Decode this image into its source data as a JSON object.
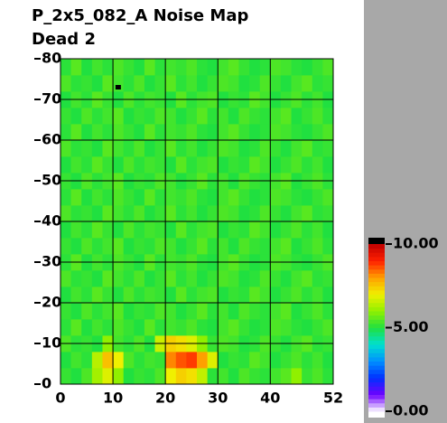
{
  "chart_data": {
    "type": "heatmap",
    "title": "P_2x5_082_A Noise Map",
    "subtitle": "Dead 2",
    "xlim": [
      0,
      52
    ],
    "xticks": [
      0,
      10,
      20,
      30,
      40,
      52
    ],
    "ylim": [
      0,
      80
    ],
    "yticks": [
      0,
      10,
      20,
      30,
      40,
      50,
      60,
      70,
      80
    ],
    "grid": true,
    "zlim": [
      0,
      10
    ],
    "zticks": [
      {
        "value": 0,
        "label": "0.00"
      },
      {
        "value": 5,
        "label": "5.00"
      },
      {
        "value": 10,
        "label": "10.00"
      }
    ],
    "colorscale": [
      "#ffffff",
      "#7000ff",
      "#0030ff",
      "#0090ff",
      "#00e0d0",
      "#20e040",
      "#90f000",
      "#f0f000",
      "#ffa000",
      "#ff2000",
      "#c00000"
    ],
    "dead_color": "#000000",
    "dead_pixels": [
      {
        "x": 11,
        "y": 73
      }
    ],
    "z": [
      [
        5.2,
        5.0,
        5.4,
        6.2,
        6.8,
        6.0,
        5.0,
        5.2,
        5.1,
        5.4,
        7.0,
        7.4,
        7.2,
        6.5,
        5.1,
        5.3,
        5.0,
        5.4,
        5.2,
        5.1,
        5.3,
        5.5,
        6.0,
        5.2,
        5.4,
        5.1
      ],
      [
        5.0,
        5.3,
        5.1,
        6.4,
        7.6,
        7.0,
        5.4,
        5.1,
        5.3,
        5.2,
        8.2,
        8.6,
        8.8,
        8.0,
        6.8,
        5.0,
        5.2,
        5.1,
        5.5,
        5.3,
        5.0,
        5.2,
        5.4,
        5.1,
        5.3,
        5.0
      ],
      [
        5.4,
        5.1,
        5.2,
        5.0,
        6.0,
        5.3,
        5.1,
        5.4,
        5.0,
        6.6,
        7.4,
        7.2,
        6.8,
        6.0,
        5.2,
        5.4,
        5.3,
        5.0,
        5.1,
        5.4,
        5.2,
        5.0,
        5.3,
        5.5,
        5.1,
        5.2
      ],
      [
        5.1,
        5.5,
        5.0,
        5.3,
        5.1,
        5.4,
        5.2,
        5.0,
        5.5,
        5.1,
        5.3,
        5.2,
        5.4,
        5.1,
        5.0,
        5.3,
        5.5,
        5.2,
        5.0,
        5.1,
        5.4,
        5.3,
        5.1,
        5.0,
        5.2,
        5.4
      ],
      [
        5.2,
        5.0,
        5.4,
        5.1,
        5.3,
        5.5,
        5.0,
        5.2,
        5.1,
        5.4,
        5.3,
        5.0,
        5.2,
        5.5,
        5.1,
        5.3,
        5.0,
        5.4,
        5.2,
        5.1,
        5.3,
        5.5,
        5.0,
        5.2,
        5.4,
        5.1
      ],
      [
        5.0,
        5.3,
        5.1,
        5.5,
        5.2,
        5.0,
        5.4,
        5.1,
        5.3,
        5.2,
        5.0,
        5.5,
        5.1,
        5.3,
        5.4,
        5.0,
        5.2,
        5.1,
        5.5,
        5.3,
        5.0,
        5.2,
        5.4,
        5.1,
        5.3,
        5.0
      ],
      [
        5.4,
        5.1,
        5.2,
        5.0,
        5.5,
        5.3,
        5.1,
        5.4,
        5.0,
        5.2,
        5.5,
        5.1,
        5.3,
        5.0,
        5.2,
        5.4,
        5.3,
        5.0,
        5.1,
        5.4,
        5.2,
        5.0,
        5.3,
        5.5,
        5.1,
        5.2
      ],
      [
        5.1,
        5.5,
        5.0,
        5.3,
        5.1,
        5.4,
        5.2,
        5.0,
        5.5,
        5.1,
        5.3,
        5.2,
        5.4,
        5.1,
        5.0,
        5.3,
        5.5,
        5.2,
        5.0,
        5.1,
        5.4,
        5.3,
        5.1,
        5.0,
        5.2,
        5.4
      ],
      [
        5.2,
        5.0,
        5.4,
        5.1,
        5.3,
        5.5,
        5.0,
        5.2,
        5.1,
        5.4,
        5.3,
        5.0,
        5.2,
        5.5,
        5.1,
        5.3,
        5.0,
        5.4,
        5.2,
        5.1,
        5.3,
        5.5,
        5.0,
        5.2,
        5.4,
        5.1
      ],
      [
        5.0,
        5.3,
        5.1,
        5.5,
        5.2,
        5.0,
        5.4,
        5.1,
        5.3,
        5.2,
        5.0,
        5.5,
        5.1,
        5.3,
        5.4,
        5.0,
        5.2,
        5.1,
        5.5,
        5.3,
        5.0,
        5.2,
        5.4,
        5.1,
        5.3,
        5.0
      ],
      [
        5.4,
        5.1,
        5.2,
        5.0,
        5.5,
        5.3,
        5.1,
        5.4,
        5.0,
        5.2,
        5.5,
        5.1,
        5.3,
        5.0,
        5.2,
        5.4,
        5.3,
        5.0,
        5.1,
        5.4,
        5.2,
        5.0,
        5.3,
        5.5,
        5.1,
        5.2
      ],
      [
        5.1,
        5.5,
        5.0,
        5.3,
        5.1,
        5.4,
        5.2,
        5.0,
        5.5,
        5.1,
        5.3,
        5.2,
        5.4,
        5.1,
        5.0,
        5.3,
        5.5,
        5.2,
        5.0,
        5.1,
        5.4,
        5.3,
        5.1,
        5.0,
        5.2,
        5.4
      ],
      [
        5.2,
        5.0,
        5.4,
        5.1,
        5.3,
        5.5,
        5.0,
        5.2,
        5.1,
        5.4,
        5.3,
        5.0,
        5.2,
        5.5,
        5.1,
        5.3,
        5.0,
        5.4,
        5.2,
        5.1,
        5.3,
        5.5,
        5.0,
        5.2,
        5.4,
        5.1
      ],
      [
        5.0,
        5.3,
        5.1,
        5.5,
        5.2,
        5.0,
        5.4,
        5.1,
        5.3,
        5.2,
        5.0,
        5.5,
        5.1,
        5.3,
        5.4,
        5.0,
        5.2,
        5.1,
        5.5,
        5.3,
        5.0,
        5.2,
        5.4,
        5.1,
        5.3,
        5.0
      ],
      [
        5.4,
        5.1,
        5.2,
        5.0,
        5.5,
        5.3,
        5.1,
        5.4,
        5.0,
        5.2,
        5.5,
        5.1,
        5.3,
        5.0,
        5.2,
        5.4,
        5.3,
        5.0,
        5.1,
        5.4,
        5.2,
        5.0,
        5.3,
        5.5,
        5.1,
        5.2
      ],
      [
        5.1,
        5.5,
        5.0,
        5.3,
        5.1,
        5.4,
        5.2,
        5.0,
        5.5,
        5.1,
        5.3,
        5.2,
        5.4,
        5.1,
        5.0,
        5.3,
        5.5,
        5.2,
        5.0,
        5.1,
        5.4,
        5.3,
        5.1,
        5.0,
        5.2,
        5.4
      ],
      [
        5.2,
        5.0,
        5.4,
        5.1,
        5.3,
        5.5,
        5.0,
        5.2,
        5.1,
        5.4,
        5.3,
        5.0,
        5.2,
        5.5,
        5.1,
        5.3,
        5.0,
        5.4,
        5.2,
        5.1,
        5.3,
        5.5,
        5.0,
        5.2,
        5.4,
        5.1
      ],
      [
        5.0,
        5.3,
        5.1,
        5.5,
        5.2,
        5.0,
        5.4,
        5.1,
        5.3,
        5.2,
        5.0,
        5.5,
        5.1,
        5.3,
        5.4,
        5.0,
        5.2,
        5.1,
        5.5,
        5.3,
        5.0,
        5.2,
        5.4,
        5.1,
        5.3,
        5.0
      ],
      [
        5.4,
        5.1,
        5.2,
        5.0,
        5.5,
        5.3,
        5.1,
        5.4,
        5.0,
        5.2,
        5.5,
        5.1,
        5.3,
        5.0,
        5.2,
        5.4,
        5.3,
        5.0,
        5.1,
        5.4,
        5.2,
        5.0,
        5.3,
        5.5,
        5.1,
        5.2
      ],
      [
        5.1,
        5.5,
        5.0,
        5.3,
        5.1,
        5.4,
        5.2,
        5.0,
        5.5,
        5.1,
        5.3,
        5.2,
        5.4,
        5.1,
        5.0,
        5.3,
        5.5,
        5.2,
        5.0,
        5.1,
        5.4,
        5.3,
        5.1,
        5.0,
        5.2,
        5.4
      ]
    ]
  }
}
